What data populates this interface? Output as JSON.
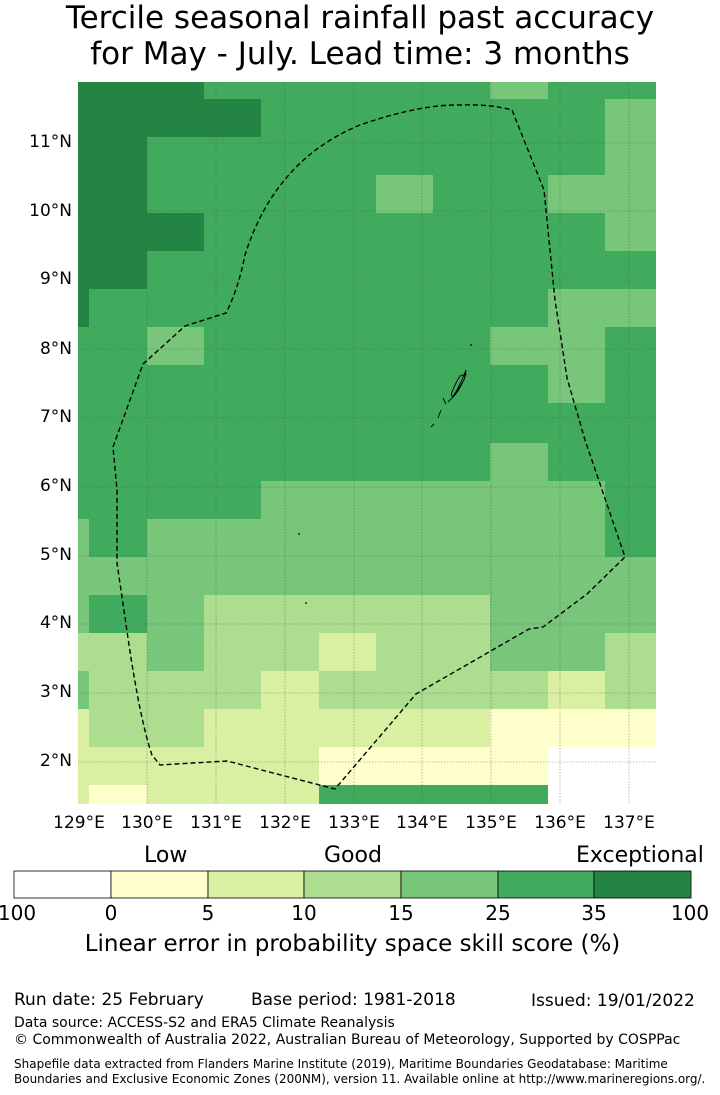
{
  "title": {
    "line1": "Tercile seasonal rainfall past accuracy",
    "line2": "for May - July. Lead time: 3 months"
  },
  "map": {
    "lat_labels": [
      "11°N",
      "10°N",
      "9°N",
      "8°N",
      "7°N",
      "6°N",
      "5°N",
      "4°N",
      "3°N",
      "2°N"
    ],
    "lon_labels": [
      "129°E",
      "130°E",
      "131°E",
      "132°E",
      "133°E",
      "134°E",
      "135°E",
      "136°E",
      "137°E"
    ],
    "gridlines": true,
    "boundary": "Exclusive Economic Zone (dashed)"
  },
  "legend": {
    "categories": [
      "Low",
      "Good",
      "Exceptional"
    ],
    "bounds": [
      "100",
      "0",
      "5",
      "10",
      "15",
      "25",
      "35",
      "100"
    ],
    "colors": [
      "#ffffff",
      "#ffffcc",
      "#d9f0a3",
      "#addd8e",
      "#78c679",
      "#41ab5d",
      "#238443"
    ],
    "title": "Linear error in probability space skill score (%)"
  },
  "footer": {
    "run_date": "Run date: 25 February",
    "base_period": "Base period: 1981-2018",
    "issued": "Issued: 19/01/2022",
    "data_source": "Data source: ACCESS-S2 and ERA5 Climate Reanalysis",
    "copyright": "© Commonwealth of Australia 2022, Australian Bureau of Meteorology, Supported by COSPPac",
    "shapefile_1": "Shapefile data extracted from Flanders Marine Institute (2019), Maritime Boundaries Geodatabase: Maritime",
    "shapefile_2": "Boundaries and Exclusive Economic Zones (200NM), version 11. Available online at http://www.marineregions.org/."
  }
}
